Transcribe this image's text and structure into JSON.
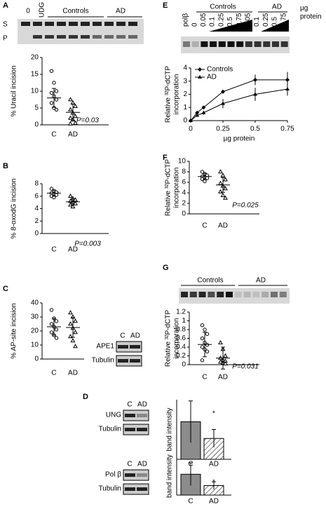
{
  "panels": [
    "A",
    "B",
    "C",
    "D",
    "E",
    "F",
    "G"
  ],
  "gels": {
    "A": {
      "lanes": [
        "0",
        "UDG"
      ],
      "groups": [
        "Controls",
        "AD"
      ],
      "bands": [
        "S",
        "P"
      ]
    },
    "E": {
      "lanes": [
        "polβ",
        "0",
        "0.05",
        "0.1",
        "0.25",
        "0.5",
        "0.75",
        "0.05",
        "0.1",
        "0.25",
        "0.5",
        "0.75"
      ],
      "groups": [
        "Controls",
        "AD"
      ],
      "unit": [
        "μg",
        "protein"
      ]
    },
    "G": {
      "groups": [
        "Controls",
        "AD"
      ]
    }
  },
  "blots": {
    "C": {
      "lanes": [
        "C",
        "AD"
      ],
      "rows": [
        "APE1",
        "Tubulin"
      ]
    },
    "D1": {
      "lanes": [
        "C",
        "AD"
      ],
      "rows": [
        "UNG",
        "Tubulin"
      ]
    },
    "D2": {
      "lanes": [
        "C",
        "AD"
      ],
      "rows": [
        "Pol β",
        "Tubulin"
      ]
    }
  },
  "chart_data": [
    {
      "type": "dotplot",
      "ylabel": "% Uracil incision",
      "categories": [
        "C",
        "AD"
      ],
      "points": [
        [
          16,
          12.5,
          10,
          9.5,
          8.5,
          7.5,
          6.5,
          5,
          4.5
        ],
        [
          7.5,
          6.5,
          5.5,
          4.5,
          3.5,
          2.5,
          2,
          1.5,
          0.5,
          0.3
        ]
      ],
      "means": [
        8,
        3.7
      ],
      "errors": [
        2.8,
        2.5
      ],
      "ylim": [
        0,
        20
      ],
      "yticks": [
        0,
        5,
        10,
        15,
        20
      ],
      "annotation": "P=0.03"
    },
    {
      "type": "dotplot",
      "ylabel": "% 8-oxodG incision",
      "categories": [
        "C",
        "AD"
      ],
      "points": [
        [
          7.2,
          6.8,
          6.6,
          6.5,
          6.4,
          6.2,
          6,
          5.8
        ],
        [
          6,
          5.6,
          5.4,
          5.2,
          5,
          4.8,
          4.6,
          4.3
        ]
      ],
      "means": [
        6.5,
        5.1
      ],
      "errors": [
        0.5,
        0.5
      ],
      "ylim": [
        0,
        8
      ],
      "yticks": [
        0,
        2,
        4,
        6,
        8
      ],
      "annotation": "P=0.003"
    },
    {
      "type": "dotplot",
      "ylabel": "% AP-site incision",
      "categories": [
        "C",
        "AD"
      ],
      "points": [
        [
          35,
          29,
          27,
          25,
          23,
          21,
          19,
          17,
          15
        ],
        [
          33,
          30,
          27,
          25,
          22,
          19,
          16,
          13,
          9
        ]
      ],
      "means": [
        23,
        22.5
      ],
      "errors": [
        6,
        7
      ],
      "ylim": [
        0,
        40
      ],
      "yticks": [
        0,
        10,
        20,
        30,
        40
      ]
    },
    {
      "type": "bar",
      "ylabel": "band intensity",
      "categories": [
        "C",
        "AD"
      ],
      "values": [
        0.63,
        0.35
      ],
      "errors": [
        0.35,
        0.15
      ],
      "colors": [
        "#8c8c8c",
        "#ffffff"
      ],
      "hatch": [
        false,
        true
      ],
      "ylim": [
        0,
        1
      ],
      "annotation": "*"
    },
    {
      "type": "bar",
      "ylabel": "band intensity",
      "categories": [
        "C",
        "AD"
      ],
      "values": [
        0.55,
        0.25
      ],
      "errors": [
        0.3,
        0.1
      ],
      "colors": [
        "#8c8c8c",
        "#ffffff"
      ],
      "hatch": [
        false,
        true
      ],
      "ylim": [
        0,
        1
      ],
      "annotation": "*"
    },
    {
      "type": "line",
      "ylabel": [
        "Relative ³²P-dCTP",
        "incorporation"
      ],
      "xlabel": "µg protein",
      "x": [
        0,
        0.05,
        0.1,
        0.25,
        0.5,
        0.75
      ],
      "series": [
        {
          "name": "Controls",
          "color": "#000000",
          "marker": "diamond",
          "values": [
            0,
            0.6,
            1,
            2.2,
            3.1,
            3.1
          ],
          "errors": [
            0,
            0.1,
            0.1,
            0.15,
            0.4,
            0.6
          ]
        },
        {
          "name": "AD",
          "color": "#000000",
          "marker": "triangle",
          "values": [
            0,
            0.4,
            0.6,
            1.3,
            2,
            2.4
          ],
          "errors": [
            0,
            0.1,
            0.15,
            0.35,
            0.5,
            0.5
          ]
        }
      ],
      "xlim": [
        0,
        0.75
      ],
      "xticks": [
        0,
        0.25,
        0.5,
        0.75
      ],
      "ylim": [
        0,
        4
      ],
      "yticks": [
        0,
        1,
        2,
        3,
        4
      ]
    },
    {
      "type": "dotplot",
      "ylabel": [
        "Relative ³²P-dCTP",
        "incorporation"
      ],
      "categories": [
        "C",
        "AD"
      ],
      "points": [
        [
          8,
          7.6,
          7.3,
          7.1,
          7,
          6.8,
          6.6,
          6.2
        ],
        [
          8,
          7.3,
          6.5,
          5.8,
          5.3,
          4.8,
          4.2,
          3.5,
          3
        ]
      ],
      "means": [
        7.1,
        5.5
      ],
      "errors": [
        0.6,
        1.4
      ],
      "ylim": [
        0,
        10
      ],
      "yticks": [
        0,
        2,
        4,
        6,
        8,
        10
      ],
      "annotation": "P=0.025"
    },
    {
      "type": "dotplot",
      "ylabel": [
        "Relative ³²P-dCTP",
        "incorporation"
      ],
      "categories": [
        "C",
        "AD"
      ],
      "points": [
        [
          0.9,
          0.8,
          0.7,
          0.6,
          0.5,
          0.45,
          0.4,
          0.35,
          0.3,
          0.1
        ],
        [
          0.5,
          0.35,
          0.2,
          0.15,
          0.1,
          0.08,
          0.06,
          0.04,
          0.02
        ]
      ],
      "means": [
        0.46,
        0.15
      ],
      "errors": [
        0.28,
        0.25
      ],
      "ylim": [
        0,
        1.2
      ],
      "yticks": [
        0,
        0.2,
        0.4,
        0.6,
        0.8,
        1,
        1.2
      ],
      "annotation": "P=0.031"
    }
  ]
}
